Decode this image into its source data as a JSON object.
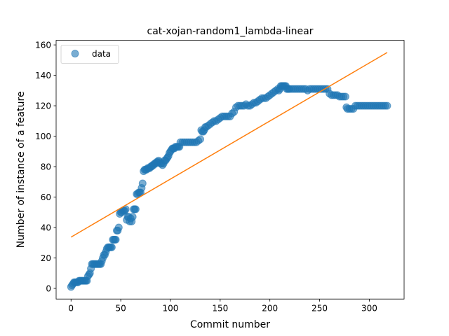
{
  "chart_data": {
    "type": "scatter",
    "title": "cat-xojan-random1_lambda-linear",
    "xlabel": "Commit number",
    "ylabel": "Number of instance of a feature",
    "xlim": [
      -15,
      335
    ],
    "ylim": [
      -7,
      163
    ],
    "xticks": [
      0,
      50,
      100,
      150,
      200,
      250,
      300
    ],
    "yticks": [
      0,
      20,
      40,
      60,
      80,
      100,
      120,
      140,
      160
    ],
    "legend": {
      "position": "upper-left",
      "entries": [
        "data"
      ]
    },
    "colors": {
      "data": "#1f77b4",
      "fit": "#ff7f0e"
    },
    "grid": false,
    "series": [
      {
        "name": "data",
        "kind": "scatter",
        "points": [
          [
            0,
            1
          ],
          [
            1,
            2
          ],
          [
            2,
            3
          ],
          [
            3,
            4
          ],
          [
            4,
            4
          ],
          [
            5,
            4
          ],
          [
            6,
            4
          ],
          [
            7,
            4
          ],
          [
            8,
            5
          ],
          [
            9,
            5
          ],
          [
            10,
            5
          ],
          [
            11,
            5
          ],
          [
            12,
            5
          ],
          [
            13,
            5
          ],
          [
            14,
            5
          ],
          [
            15,
            5
          ],
          [
            16,
            5
          ],
          [
            17,
            8
          ],
          [
            18,
            9
          ],
          [
            19,
            10
          ],
          [
            20,
            13
          ],
          [
            21,
            16
          ],
          [
            22,
            16
          ],
          [
            23,
            16
          ],
          [
            24,
            16
          ],
          [
            25,
            16
          ],
          [
            26,
            16
          ],
          [
            27,
            16
          ],
          [
            28,
            16
          ],
          [
            29,
            16
          ],
          [
            30,
            16
          ],
          [
            31,
            18
          ],
          [
            32,
            20
          ],
          [
            33,
            22
          ],
          [
            34,
            22
          ],
          [
            35,
            24
          ],
          [
            36,
            26
          ],
          [
            37,
            27
          ],
          [
            38,
            27
          ],
          [
            39,
            27
          ],
          [
            40,
            27
          ],
          [
            41,
            27
          ],
          [
            42,
            32
          ],
          [
            43,
            32
          ],
          [
            44,
            32
          ],
          [
            45,
            32
          ],
          [
            46,
            38
          ],
          [
            47,
            38
          ],
          [
            48,
            40
          ],
          [
            49,
            49
          ],
          [
            50,
            50
          ],
          [
            51,
            50
          ],
          [
            52,
            51
          ],
          [
            53,
            51
          ],
          [
            54,
            51
          ],
          [
            55,
            52
          ],
          [
            56,
            45
          ],
          [
            57,
            47
          ],
          [
            58,
            47
          ],
          [
            59,
            44
          ],
          [
            60,
            46
          ],
          [
            61,
            44
          ],
          [
            62,
            47
          ],
          [
            63,
            52
          ],
          [
            64,
            52
          ],
          [
            65,
            52
          ],
          [
            66,
            62
          ],
          [
            67,
            62
          ],
          [
            68,
            63
          ],
          [
            69,
            63
          ],
          [
            70,
            63
          ],
          [
            71,
            66
          ],
          [
            72,
            69
          ],
          [
            73,
            77
          ],
          [
            74,
            78
          ],
          [
            75,
            78
          ],
          [
            76,
            78
          ],
          [
            77,
            79
          ],
          [
            78,
            79
          ],
          [
            79,
            79
          ],
          [
            80,
            80
          ],
          [
            81,
            80
          ],
          [
            82,
            81
          ],
          [
            83,
            81
          ],
          [
            84,
            82
          ],
          [
            85,
            82
          ],
          [
            86,
            83
          ],
          [
            87,
            83
          ],
          [
            88,
            84
          ],
          [
            89,
            83
          ],
          [
            90,
            82
          ],
          [
            91,
            82
          ],
          [
            92,
            81
          ],
          [
            93,
            82
          ],
          [
            94,
            84
          ],
          [
            95,
            84
          ],
          [
            96,
            85
          ],
          [
            97,
            86
          ],
          [
            98,
            87
          ],
          [
            99,
            89
          ],
          [
            100,
            90
          ],
          [
            101,
            91
          ],
          [
            102,
            92
          ],
          [
            103,
            92
          ],
          [
            104,
            92
          ],
          [
            105,
            93
          ],
          [
            106,
            93
          ],
          [
            107,
            93
          ],
          [
            108,
            93
          ],
          [
            109,
            93
          ],
          [
            110,
            96
          ],
          [
            112,
            96
          ],
          [
            114,
            96
          ],
          [
            116,
            96
          ],
          [
            118,
            96
          ],
          [
            120,
            96
          ],
          [
            122,
            96
          ],
          [
            124,
            96
          ],
          [
            126,
            96
          ],
          [
            128,
            97
          ],
          [
            130,
            98
          ],
          [
            131,
            104
          ],
          [
            132,
            103
          ],
          [
            133,
            103
          ],
          [
            134,
            104
          ],
          [
            135,
            106
          ],
          [
            136,
            106
          ],
          [
            138,
            107
          ],
          [
            140,
            108
          ],
          [
            142,
            109
          ],
          [
            144,
            110
          ],
          [
            146,
            110
          ],
          [
            148,
            111
          ],
          [
            150,
            112
          ],
          [
            152,
            113
          ],
          [
            154,
            113
          ],
          [
            156,
            113
          ],
          [
            158,
            113
          ],
          [
            160,
            113
          ],
          [
            162,
            115
          ],
          [
            164,
            116
          ],
          [
            166,
            119
          ],
          [
            168,
            120
          ],
          [
            170,
            120
          ],
          [
            172,
            120
          ],
          [
            174,
            120
          ],
          [
            176,
            121
          ],
          [
            178,
            120
          ],
          [
            180,
            120
          ],
          [
            182,
            121
          ],
          [
            184,
            122
          ],
          [
            186,
            122
          ],
          [
            188,
            123
          ],
          [
            190,
            124
          ],
          [
            192,
            125
          ],
          [
            194,
            125
          ],
          [
            196,
            125
          ],
          [
            198,
            126
          ],
          [
            200,
            127
          ],
          [
            202,
            128
          ],
          [
            204,
            129
          ],
          [
            206,
            130
          ],
          [
            208,
            131
          ],
          [
            209,
            130
          ],
          [
            210,
            131
          ],
          [
            211,
            133
          ],
          [
            212,
            133
          ],
          [
            213,
            133
          ],
          [
            214,
            133
          ],
          [
            215,
            133
          ],
          [
            216,
            133
          ],
          [
            217,
            131
          ],
          [
            218,
            131
          ],
          [
            219,
            131
          ],
          [
            220,
            131
          ],
          [
            222,
            131
          ],
          [
            224,
            131
          ],
          [
            226,
            131
          ],
          [
            228,
            131
          ],
          [
            230,
            131
          ],
          [
            232,
            131
          ],
          [
            234,
            131
          ],
          [
            236,
            131
          ],
          [
            238,
            130
          ],
          [
            240,
            131
          ],
          [
            242,
            131
          ],
          [
            244,
            131
          ],
          [
            246,
            131
          ],
          [
            248,
            131
          ],
          [
            250,
            131
          ],
          [
            252,
            131
          ],
          [
            254,
            131
          ],
          [
            256,
            131
          ],
          [
            258,
            131
          ],
          [
            260,
            128
          ],
          [
            262,
            127
          ],
          [
            264,
            127
          ],
          [
            266,
            127
          ],
          [
            268,
            127
          ],
          [
            270,
            126
          ],
          [
            272,
            126
          ],
          [
            274,
            126
          ],
          [
            276,
            126
          ],
          [
            277,
            119
          ],
          [
            278,
            118
          ],
          [
            280,
            118
          ],
          [
            282,
            118
          ],
          [
            284,
            118
          ],
          [
            286,
            120
          ],
          [
            288,
            120
          ],
          [
            290,
            120
          ],
          [
            292,
            120
          ],
          [
            294,
            120
          ],
          [
            296,
            120
          ],
          [
            298,
            120
          ],
          [
            300,
            120
          ],
          [
            302,
            120
          ],
          [
            304,
            120
          ],
          [
            306,
            120
          ],
          [
            308,
            120
          ],
          [
            310,
            120
          ],
          [
            312,
            120
          ],
          [
            314,
            120
          ],
          [
            316,
            120
          ],
          [
            318,
            120
          ]
        ]
      },
      {
        "kind": "line",
        "points": [
          [
            0,
            33.7
          ],
          [
            318,
            155
          ]
        ]
      }
    ]
  }
}
